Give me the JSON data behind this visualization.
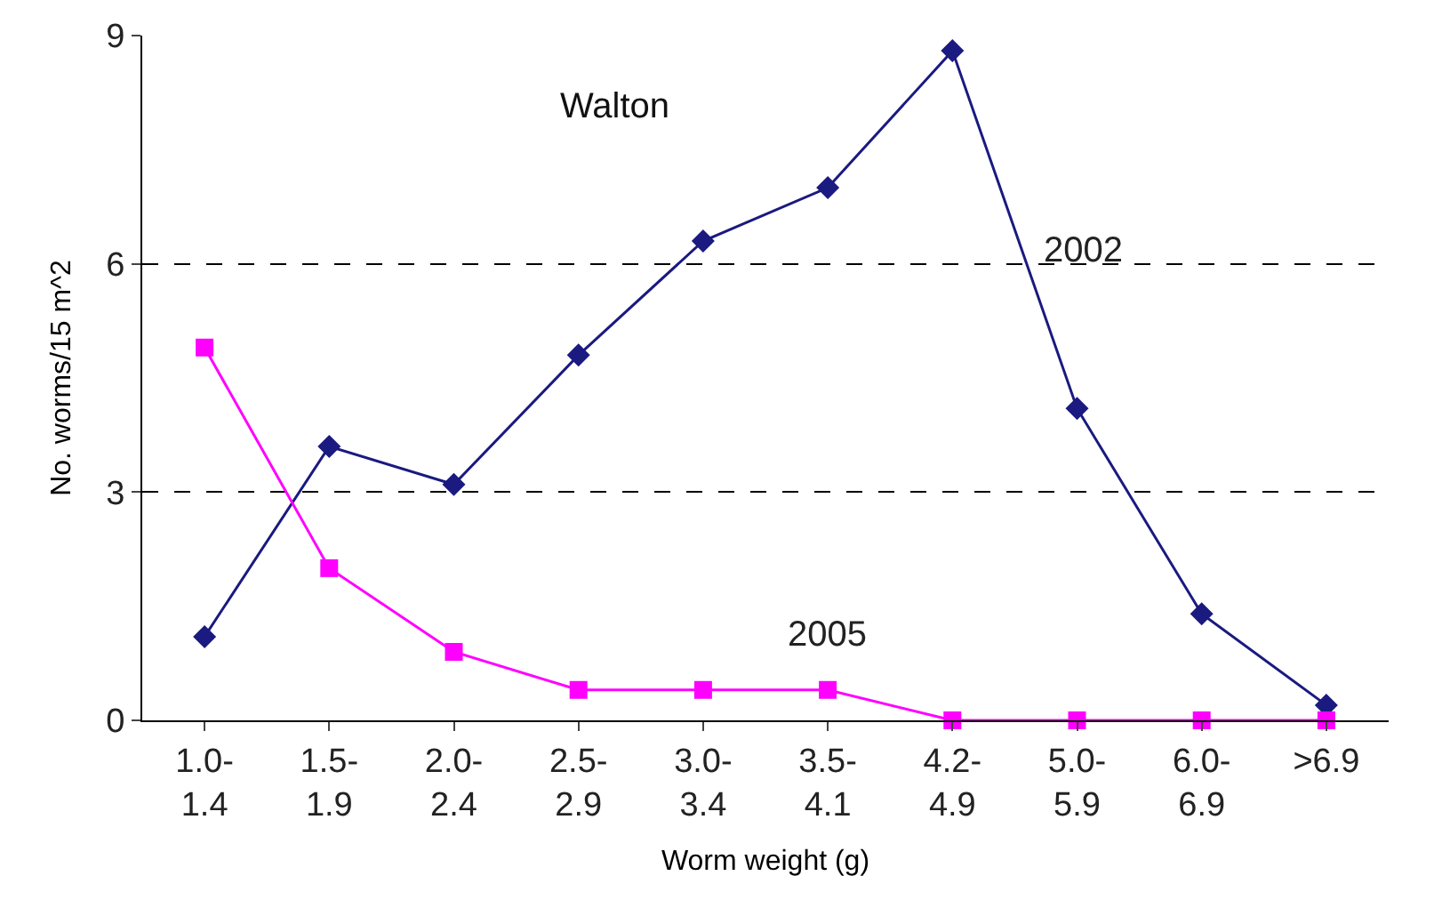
{
  "chart_data": {
    "type": "line",
    "xlabel": "Worm weight (g)",
    "ylabel": "No. worms/15 m^2",
    "annotations": [
      "Walton"
    ],
    "categories": [
      "1.0-\n1.4",
      "1.5-\n1.9",
      "2.0-\n2.4",
      "2.5-\n2.9",
      "3.0-\n3.4",
      "3.5-\n4.1",
      "4.2-\n4.9",
      "5.0-\n5.9",
      "6.0-\n6.9",
      ">6.9"
    ],
    "series": [
      {
        "name": "2002",
        "color": "#1a1a80",
        "marker": "diamond",
        "values": [
          1.1,
          3.6,
          3.1,
          4.8,
          6.3,
          7.0,
          8.8,
          4.1,
          1.4,
          0.2
        ]
      },
      {
        "name": "2005",
        "color": "#ff00ff",
        "marker": "square",
        "values": [
          4.9,
          2.0,
          0.9,
          0.4,
          0.4,
          0.4,
          0.0,
          0.0,
          0.0,
          0.0
        ]
      }
    ],
    "ylim": [
      0,
      9
    ],
    "yticks": [
      0,
      3,
      6,
      9
    ],
    "grid": "y",
    "legend": false,
    "line_style": "solid"
  }
}
